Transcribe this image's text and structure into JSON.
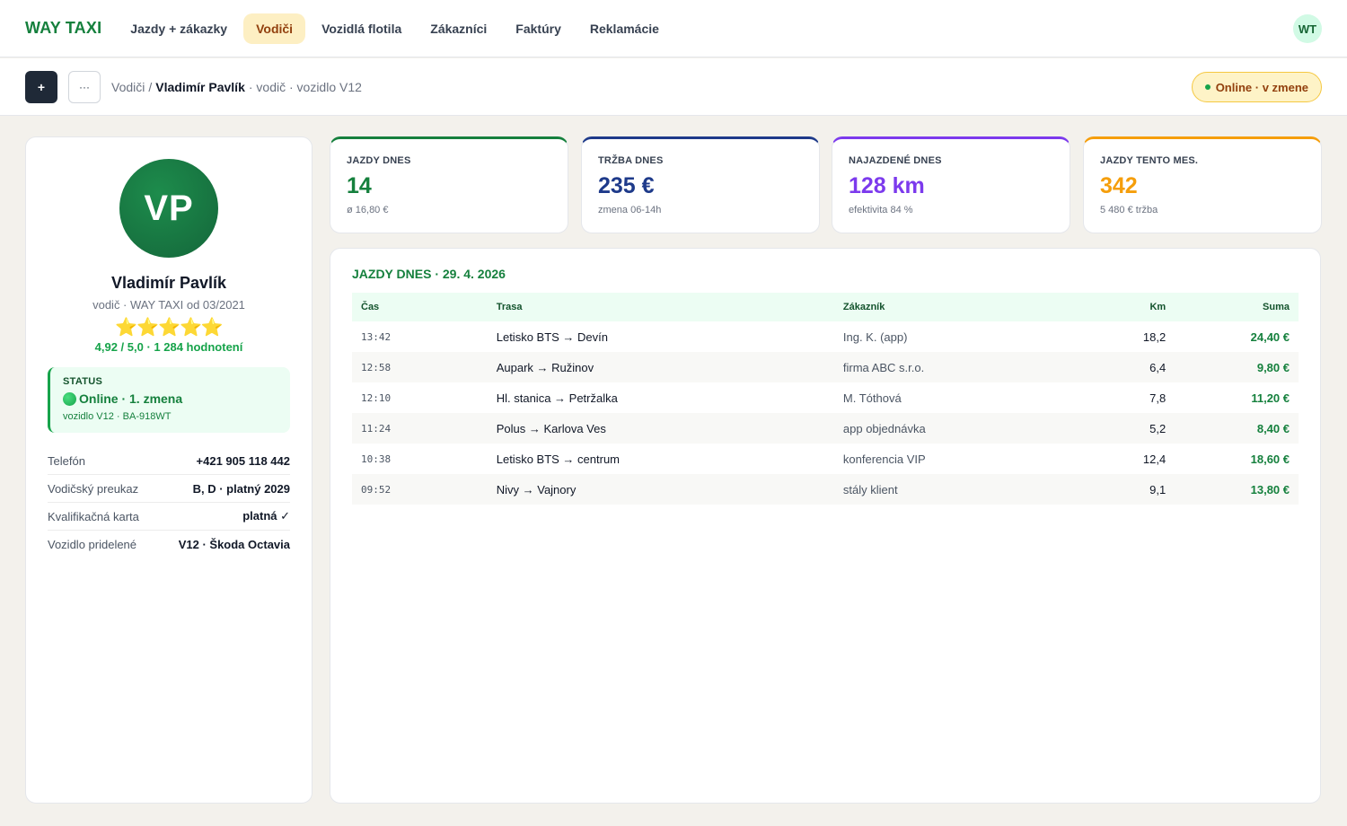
{
  "brand": "WAY TAXI",
  "nav": [
    {
      "label": "Jazdy + zákazky",
      "active": false
    },
    {
      "label": "Vodiči",
      "active": true
    },
    {
      "label": "Vozidlá flotila",
      "active": false
    },
    {
      "label": "Zákazníci",
      "active": false
    },
    {
      "label": "Faktúry",
      "active": false
    },
    {
      "label": "Reklamácie",
      "active": false
    }
  ],
  "user_initials": "WT",
  "subbar": {
    "add_label": "+",
    "more_label": "···",
    "crumb_root": "Vodiči",
    "crumb_sep": "/",
    "crumb_name": "Vladimír Pavlík",
    "crumb_meta": "· vodič · vozidlo V12",
    "status": "Online · v zmene"
  },
  "profile": {
    "initials": "VP",
    "name": "Vladimír Pavlík",
    "subtitle": "vodič · WAY TAXI od 03/2021",
    "stars": "⭐⭐⭐⭐⭐",
    "rating": "4,92 / 5,0 · 1 284 hodnotení",
    "status_label": "STATUS",
    "status_value": "Online · 1. zmena",
    "status_vehicle": "vozidlo V12 · BA-918WT",
    "info": [
      {
        "k": "Telefón",
        "v": "+421 905 118 442"
      },
      {
        "k": "Vodičský preukaz",
        "v": "B, D · platný 2029"
      },
      {
        "k": "Kvalifikačná karta",
        "v": "platná ✓"
      },
      {
        "k": "Vozidlo pridelené",
        "v": "V12 · Škoda Octavia"
      }
    ]
  },
  "kpis": [
    {
      "label": "JAZDY DNES",
      "value": "14",
      "sub": "ø 16,80 €",
      "color": "#15803d"
    },
    {
      "label": "TRŽBA DNES",
      "value": "235 €",
      "sub": "zmena 06-14h",
      "color": "#1e3a8a"
    },
    {
      "label": "NAJAZDENÉ DNES",
      "value": "128 km",
      "sub": "efektivita 84 %",
      "color": "#7c3aed"
    },
    {
      "label": "JAZDY TENTO MES.",
      "value": "342",
      "sub": "5 480 € tržba",
      "color": "#f59e0b"
    }
  ],
  "rides": {
    "title": "JAZDY DNES · 29. 4. 2026",
    "columns": [
      "Čas",
      "Trasa",
      "Zákazník",
      "Km",
      "Suma"
    ],
    "rows": [
      {
        "time": "13:42",
        "route": "Letisko BTS → Devín",
        "customer": "Ing. K. (app)",
        "km": "18,2",
        "sum": "24,40 €"
      },
      {
        "time": "12:58",
        "route": "Aupark → Ružinov",
        "customer": "firma ABC s.r.o.",
        "km": "6,4",
        "sum": "9,80 €"
      },
      {
        "time": "12:10",
        "route": "Hl. stanica → Petržalka",
        "customer": "M. Tóthová",
        "km": "7,8",
        "sum": "11,20 €"
      },
      {
        "time": "11:24",
        "route": "Polus → Karlova Ves",
        "customer": "app objednávka",
        "km": "5,2",
        "sum": "8,40 €"
      },
      {
        "time": "10:38",
        "route": "Letisko BTS → centrum",
        "customer": "konferencia VIP",
        "km": "12,4",
        "sum": "18,60 €"
      },
      {
        "time": "09:52",
        "route": "Nivy → Vajnory",
        "customer": "stály klient",
        "km": "9,1",
        "sum": "13,80 €"
      }
    ]
  }
}
